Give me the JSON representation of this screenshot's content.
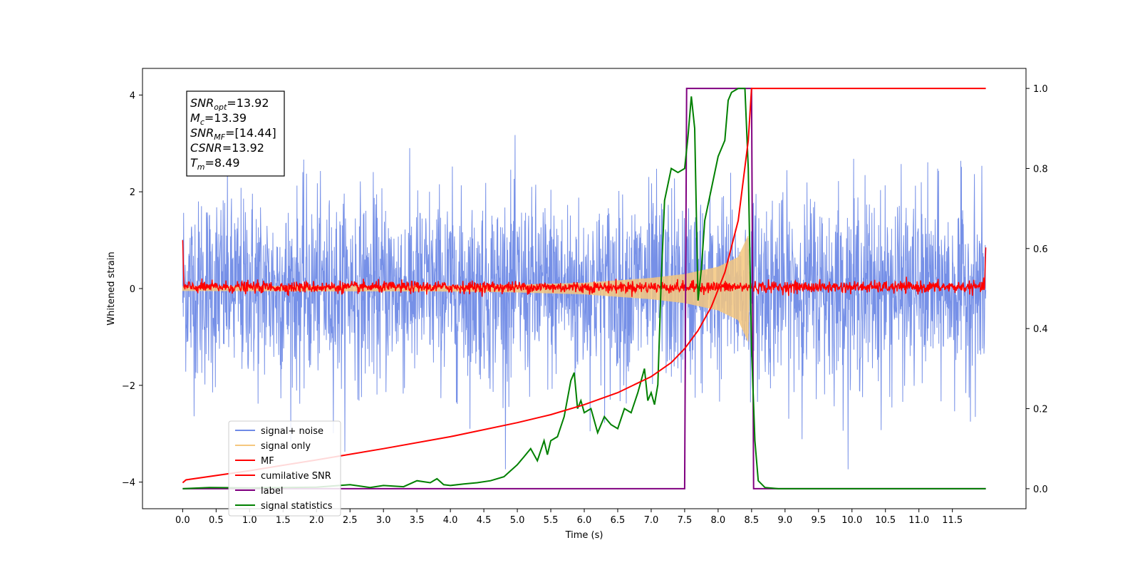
{
  "chart_data": {
    "type": "line",
    "xlabel": "Time (s)",
    "ylabel": "Whitened strain",
    "xlim": [
      -0.6,
      12.6
    ],
    "ylim": [
      -4.55,
      4.55
    ],
    "ylim_right": [
      -0.05,
      1.05
    ],
    "xticks": [
      0.0,
      0.5,
      1.0,
      1.5,
      2.0,
      2.5,
      3.0,
      3.5,
      4.0,
      4.5,
      5.0,
      5.5,
      6.0,
      6.5,
      7.0,
      7.5,
      8.0,
      8.5,
      9.0,
      9.5,
      10.0,
      10.5,
      11.0,
      11.5
    ],
    "xtick_labels": [
      "0.0",
      "0.5",
      "1.0",
      "1.5",
      "2.0",
      "2.5",
      "3.0",
      "3.5",
      "4.0",
      "4.5",
      "5.0",
      "5.5",
      "6.0",
      "6.5",
      "7.0",
      "7.5",
      "8.0",
      "8.5",
      "9.0",
      "9.5",
      "10.0",
      "10.5",
      "11.0",
      "11.5"
    ],
    "yticks_left": [
      4,
      2,
      0,
      -2,
      -4
    ],
    "ytick_labels_left": [
      "4",
      "2",
      "0",
      "−2",
      "−4"
    ],
    "yticks_right": [
      1.0,
      0.8,
      0.6,
      0.4,
      0.2,
      0.0
    ],
    "ytick_labels_right": [
      "1.0",
      "0.8",
      "0.6",
      "0.4",
      "0.2",
      "0.0"
    ],
    "legend_placement": "lower-left",
    "annotation": [
      {
        "main": "SNR",
        "sub": "opt",
        "value": "=13.92"
      },
      {
        "main": "M",
        "sub": "c",
        "value": "=13.39"
      },
      {
        "main": "SNR",
        "sub": "MF",
        "value": "=[14.44]"
      },
      {
        "main": "CSNR",
        "sub": "",
        "value": "=13.92"
      },
      {
        "main": "T",
        "sub": "m",
        "value": "=8.49"
      }
    ],
    "series": [
      {
        "name": "signal+ noise",
        "axis": "left",
        "color": "#6f8ae6",
        "description_values": {
          "x_range": [
            0,
            12
          ],
          "amplitude_typical": 2.6,
          "peak_max": 4.1,
          "peak_min": -4.05
        }
      },
      {
        "name": "signal only",
        "axis": "left",
        "color": "#f5c77e",
        "envelope": {
          "x": [
            0,
            4.0,
            5.0,
            6.0,
            7.0,
            7.5,
            8.0,
            8.3,
            8.45,
            8.47
          ],
          "amp": [
            0.05,
            0.06,
            0.08,
            0.12,
            0.22,
            0.3,
            0.45,
            0.65,
            1.1,
            0.0
          ]
        }
      },
      {
        "name": "MF",
        "axis": "left",
        "color": "#ff0000",
        "noise_amplitude": 0.12,
        "edge_values": {
          "start": 1.0,
          "end": 0.85
        }
      },
      {
        "name": "cumilative SNR",
        "axis": "right",
        "color": "#ff0000",
        "x": [
          0,
          0.05,
          1,
          2,
          3,
          4,
          5,
          5.5,
          6,
          6.5,
          7,
          7.3,
          7.5,
          7.7,
          7.9,
          8.1,
          8.3,
          8.45,
          8.5,
          12
        ],
        "y": [
          0.015,
          0.022,
          0.045,
          0.072,
          0.1,
          0.13,
          0.165,
          0.185,
          0.21,
          0.24,
          0.28,
          0.315,
          0.35,
          0.395,
          0.455,
          0.54,
          0.67,
          0.87,
          1.0,
          1.0
        ]
      },
      {
        "name": "label",
        "axis": "right",
        "color": "#800080",
        "x": [
          0,
          7.5,
          7.53,
          8.5,
          8.53,
          12
        ],
        "y": [
          0,
          0,
          1,
          1,
          0,
          0
        ]
      },
      {
        "name": "signal statistics",
        "axis": "right",
        "color": "#008000",
        "x": [
          0,
          0.4,
          1,
          2,
          2.5,
          2.8,
          3.0,
          3.3,
          3.5,
          3.7,
          3.8,
          3.9,
          4.0,
          4.2,
          4.4,
          4.6,
          4.8,
          4.9,
          5.0,
          5.1,
          5.2,
          5.3,
          5.4,
          5.45,
          5.5,
          5.6,
          5.7,
          5.8,
          5.85,
          5.9,
          5.95,
          6.0,
          6.1,
          6.2,
          6.3,
          6.4,
          6.5,
          6.6,
          6.7,
          6.8,
          6.9,
          6.95,
          7.0,
          7.05,
          7.1,
          7.15,
          7.2,
          7.3,
          7.4,
          7.5,
          7.55,
          7.6,
          7.65,
          7.7,
          7.75,
          7.8,
          7.9,
          8.0,
          8.1,
          8.15,
          8.2,
          8.3,
          8.4,
          8.45,
          8.5,
          8.55,
          8.6,
          8.7,
          8.9,
          12
        ],
        "y": [
          0.0,
          0.003,
          0.002,
          0.004,
          0.01,
          0.003,
          0.008,
          0.005,
          0.02,
          0.015,
          0.025,
          0.01,
          0.008,
          0.012,
          0.015,
          0.02,
          0.03,
          0.045,
          0.06,
          0.08,
          0.1,
          0.07,
          0.12,
          0.085,
          0.12,
          0.13,
          0.18,
          0.27,
          0.29,
          0.2,
          0.22,
          0.19,
          0.2,
          0.14,
          0.18,
          0.16,
          0.15,
          0.2,
          0.19,
          0.24,
          0.3,
          0.22,
          0.24,
          0.21,
          0.26,
          0.52,
          0.72,
          0.8,
          0.79,
          0.8,
          0.88,
          0.98,
          0.9,
          0.47,
          0.55,
          0.67,
          0.75,
          0.83,
          0.87,
          0.97,
          0.99,
          1.0,
          1.0,
          0.8,
          0.35,
          0.12,
          0.02,
          0.003,
          0.0,
          0.0
        ]
      }
    ]
  }
}
